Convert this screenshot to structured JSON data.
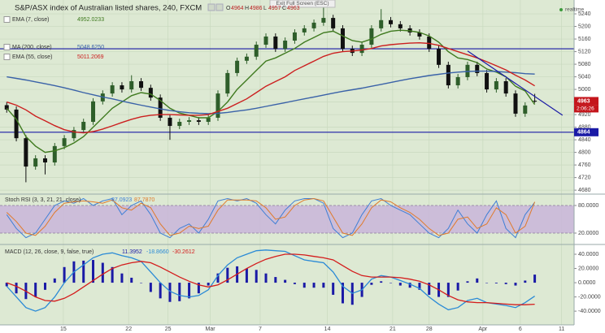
{
  "ui": {
    "exit_button": "Exit Full Screen (ESC)",
    "status": "realtime",
    "countdown": "2:06:26"
  },
  "chart_data": [
    {
      "type": "candlestick",
      "title": "S&P/ASX index of Australian listed shares, 240, FXCM",
      "ohlc_letters": [
        "O",
        "H",
        "L",
        "C"
      ],
      "x": [
        0,
        1,
        2,
        3,
        4,
        5,
        6,
        7,
        8,
        9,
        10,
        11,
        12,
        13,
        14,
        15,
        16,
        17,
        18,
        19,
        20,
        21,
        22,
        23,
        24,
        25,
        26,
        27,
        28,
        29,
        30,
        31,
        32,
        33,
        34,
        35,
        36,
        37,
        38,
        39,
        40,
        41,
        42,
        43,
        44,
        45,
        46,
        47,
        48,
        49,
        50,
        51,
        52,
        53,
        54,
        55
      ],
      "open": [
        4950,
        4936,
        4845,
        4755,
        4781,
        4768,
        4820,
        4845,
        4871,
        4897,
        4962,
        4987,
        5013,
        5000,
        5026,
        5005,
        4974,
        4910,
        4884,
        4897,
        4902,
        4897,
        4910,
        4987,
        5052,
        5091,
        5104,
        5142,
        5168,
        5129,
        5155,
        5181,
        5194,
        5212,
        5227,
        5194,
        5129,
        5116,
        5142,
        5194,
        5220,
        5207,
        5194,
        5181,
        5168,
        5129,
        5078,
        5013,
        5039,
        5078,
        5052,
        5000,
        5026,
        4987,
        4923,
        4964
      ],
      "high": [
        4960,
        4946,
        4855,
        4791,
        4791,
        4830,
        4855,
        4881,
        4907,
        4972,
        4997,
        5023,
        5023,
        5045,
        5036,
        5015,
        4984,
        4920,
        4907,
        4912,
        4912,
        4920,
        4997,
        5062,
        5101,
        5114,
        5152,
        5178,
        5178,
        5165,
        5191,
        5204,
        5222,
        5260,
        5237,
        5204,
        5139,
        5152,
        5204,
        5255,
        5230,
        5217,
        5204,
        5191,
        5178,
        5139,
        5088,
        5049,
        5088,
        5088,
        5062,
        5036,
        5036,
        4997,
        4959,
        4986
      ],
      "low": [
        4926,
        4835,
        4705,
        4745,
        4730,
        4758,
        4810,
        4835,
        4861,
        4887,
        4952,
        4977,
        4990,
        4990,
        4995,
        4964,
        4900,
        4840,
        4874,
        4887,
        4887,
        4887,
        4900,
        4977,
        5042,
        5081,
        5094,
        5132,
        5119,
        5119,
        5145,
        5171,
        5184,
        5202,
        5184,
        5119,
        5106,
        5106,
        5132,
        5184,
        5197,
        5184,
        5171,
        5158,
        5119,
        5068,
        5003,
        5003,
        5029,
        5042,
        4990,
        4990,
        4977,
        4913,
        4913,
        4957
      ],
      "close": [
        4936,
        4845,
        4755,
        4781,
        4768,
        4820,
        4845,
        4871,
        4897,
        4962,
        4987,
        5013,
        5000,
        5026,
        5005,
        4974,
        4910,
        4884,
        4897,
        4902,
        4897,
        4910,
        4987,
        5052,
        5091,
        5104,
        5142,
        5168,
        5129,
        5155,
        5181,
        5194,
        5212,
        5227,
        5194,
        5129,
        5116,
        5142,
        5194,
        5220,
        5207,
        5194,
        5181,
        5168,
        5129,
        5078,
        5013,
        5039,
        5078,
        5052,
        5000,
        5026,
        4987,
        4923,
        4949,
        4963
      ],
      "up_color": "#2e5e2a",
      "down_color": "#111111",
      "overlays": [
        {
          "name": "EMA (7, close)",
          "legend_value": "4952.0233",
          "color": "#3f7a1f",
          "values": [
            4940,
            4905,
            4850,
            4820,
            4800,
            4805,
            4815,
            4830,
            4850,
            4880,
            4910,
            4940,
            4960,
            4980,
            4990,
            4985,
            4965,
            4940,
            4925,
            4918,
            4910,
            4910,
            4930,
            4960,
            5000,
            5030,
            5060,
            5090,
            5100,
            5115,
            5130,
            5150,
            5165,
            5180,
            5185,
            5170,
            5155,
            5150,
            5160,
            5175,
            5185,
            5188,
            5186,
            5181,
            5170,
            5150,
            5120,
            5100,
            5095,
            5085,
            5065,
            5055,
            5040,
            5010,
            4995,
            4952.0233
          ]
        },
        {
          "name": "MA (200, close)",
          "legend_value": "5048.6250",
          "color": "#3a62a8",
          "values": [
            5040,
            5035,
            5030,
            5024,
            5018,
            5012,
            5005,
            4998,
            4990,
            4983,
            4976,
            4970,
            4963,
            4956,
            4950,
            4944,
            4938,
            4933,
            4929,
            4926,
            4924,
            4923,
            4924,
            4927,
            4931,
            4935,
            4940,
            4946,
            4952,
            4958,
            4964,
            4970,
            4976,
            4982,
            4988,
            4994,
            4999,
            5004,
            5010,
            5016,
            5022,
            5028,
            5034,
            5039,
            5044,
            5048,
            5052,
            5055,
            5057,
            5058,
            5058,
            5057,
            5055,
            5053,
            5050,
            5048.625
          ]
        },
        {
          "name": "EMA (55, close)",
          "legend_value": "5011.2069",
          "color": "#cc1f1f",
          "values": [
            4960,
            4950,
            4935,
            4915,
            4900,
            4885,
            4872,
            4865,
            4862,
            4866,
            4874,
            4884,
            4895,
            4905,
            4913,
            4918,
            4920,
            4920,
            4919,
            4918,
            4918,
            4920,
            4930,
            4940,
            4955,
            4970,
            4990,
            5010,
            5025,
            5040,
            5060,
            5075,
            5090,
            5105,
            5115,
            5120,
            5122,
            5125,
            5130,
            5138,
            5142,
            5145,
            5147,
            5148,
            5146,
            5140,
            5130,
            5120,
            5110,
            5100,
            5088,
            5075,
            5062,
            5045,
            5030,
            5011.2069
          ]
        }
      ],
      "hlines": [
        5129,
        4864
      ],
      "hline_color": "#1a1aa6",
      "trendline": {
        "x": [
          48.0,
          57.9
        ],
        "y": [
          5122,
          4918
        ],
        "color": "#1a1aa6"
      },
      "last_price_color": "#c4161c",
      "xlim": [
        -0.7,
        59.1
      ],
      "xticks": [
        {
          "value": 5.9,
          "label": "15"
        },
        {
          "value": 12.7,
          "label": "22"
        },
        {
          "value": 16.8,
          "label": "25"
        },
        {
          "value": 21.2,
          "label": "Mar"
        },
        {
          "value": 26.4,
          "label": "7"
        },
        {
          "value": 33.4,
          "label": "14"
        },
        {
          "value": 40.2,
          "label": "21"
        },
        {
          "value": 44.0,
          "label": "28"
        },
        {
          "value": 49.6,
          "label": "Apr"
        },
        {
          "value": 53.5,
          "label": "6"
        },
        {
          "value": 57.8,
          "label": "11"
        }
      ],
      "ylim": [
        4670,
        5284
      ],
      "yticks": [
        4680,
        4720,
        4760,
        4800,
        4840,
        4880,
        4920,
        4960,
        5000,
        5040,
        5080,
        5120,
        5160,
        5200,
        5240
      ],
      "grid": true
    },
    {
      "type": "oscillator",
      "title": "Stoch RSI (3, 3, 21, 21, close)",
      "band_color": "#c9b5d9",
      "series": [
        {
          "name": "K",
          "legend_value": "87.0923",
          "color": "#3f7fd6",
          "values": [
            60,
            30,
            10,
            20,
            50,
            80,
            90,
            85,
            95,
            80,
            90,
            95,
            60,
            80,
            90,
            60,
            20,
            10,
            30,
            40,
            20,
            50,
            90,
            95,
            90,
            95,
            85,
            60,
            40,
            70,
            90,
            95,
            95,
            85,
            30,
            10,
            20,
            60,
            90,
            95,
            80,
            70,
            60,
            40,
            20,
            10,
            30,
            70,
            40,
            20,
            60,
            90,
            30,
            10,
            60,
            87.0923
          ]
        },
        {
          "name": "D",
          "legend_value": "87.7870",
          "color": "#e07a2a",
          "values": [
            65,
            45,
            20,
            15,
            35,
            65,
            85,
            88,
            90,
            88,
            85,
            92,
            75,
            70,
            85,
            75,
            40,
            15,
            20,
            35,
            30,
            35,
            70,
            92,
            92,
            92,
            90,
            75,
            50,
            55,
            80,
            92,
            95,
            90,
            55,
            20,
            15,
            40,
            75,
            92,
            88,
            75,
            65,
            50,
            30,
            15,
            20,
            50,
            55,
            30,
            40,
            75,
            60,
            20,
            35,
            87.787
          ]
        }
      ],
      "ylim": [
        -3,
        103
      ],
      "yticks": [
        {
          "value": 20,
          "label": "20.0000"
        },
        {
          "value": 80,
          "label": "80.0000"
        }
      ]
    },
    {
      "type": "macd",
      "title": "MACD (12, 26, close, 9, false, true)",
      "histogram": {
        "legend_value": "11.3952",
        "color": "#1a1aa6",
        "values": [
          -5,
          -15,
          -23,
          -20,
          -10,
          6,
          22,
          30,
          31,
          32,
          28,
          22,
          13,
          7,
          0,
          -13,
          -22,
          -27,
          -26,
          -22,
          -15,
          -4,
          13,
          21,
          23,
          20,
          18,
          13,
          8,
          4,
          -2,
          -7,
          -7,
          -7,
          -17,
          -29,
          -31,
          -20,
          -3,
          2,
          0,
          -4,
          -7,
          -10,
          -17,
          -20,
          -20,
          -11,
          2,
          6,
          0,
          -1,
          -2,
          -4,
          3,
          11.3952
        ]
      },
      "series": [
        {
          "name": "MACD",
          "legend_value": "-18.8660",
          "color": "#2a8ad6",
          "values": [
            -5,
            -20,
            -35,
            -40,
            -35,
            -20,
            0,
            15,
            25,
            35,
            40,
            42,
            38,
            35,
            30,
            15,
            0,
            -12,
            -18,
            -20,
            -18,
            -10,
            10,
            25,
            35,
            40,
            45,
            46,
            45,
            44,
            38,
            32,
            30,
            28,
            15,
            -5,
            -15,
            -10,
            5,
            10,
            8,
            3,
            -2,
            -8,
            -20,
            -30,
            -38,
            -35,
            -25,
            -22,
            -28,
            -30,
            -32,
            -35,
            -28,
            -18.866
          ]
        },
        {
          "name": "Signal",
          "legend_value": "-30.2612",
          "color": "#d41c1c",
          "values": [
            0,
            -5,
            -12,
            -20,
            -25,
            -26,
            -22,
            -15,
            -6,
            3,
            12,
            20,
            25,
            28,
            30,
            28,
            22,
            15,
            8,
            2,
            -3,
            -6,
            -3,
            4,
            12,
            20,
            27,
            33,
            37,
            40,
            40,
            39,
            37,
            35,
            32,
            24,
            16,
            10,
            8,
            8,
            8,
            7,
            5,
            2,
            -3,
            -10,
            -18,
            -24,
            -27,
            -28,
            -28,
            -29,
            -30,
            -31,
            -31,
            -30.2612
          ]
        }
      ],
      "ylim": [
        -57,
        52.6
      ],
      "yticks": [
        {
          "value": -40,
          "label": "-40.0000"
        },
        {
          "value": -20,
          "label": "-20.0000"
        },
        {
          "value": 0,
          "label": "0.0000"
        },
        {
          "value": 20,
          "label": "20.0000"
        },
        {
          "value": 40,
          "label": "40.0000"
        }
      ]
    }
  ]
}
